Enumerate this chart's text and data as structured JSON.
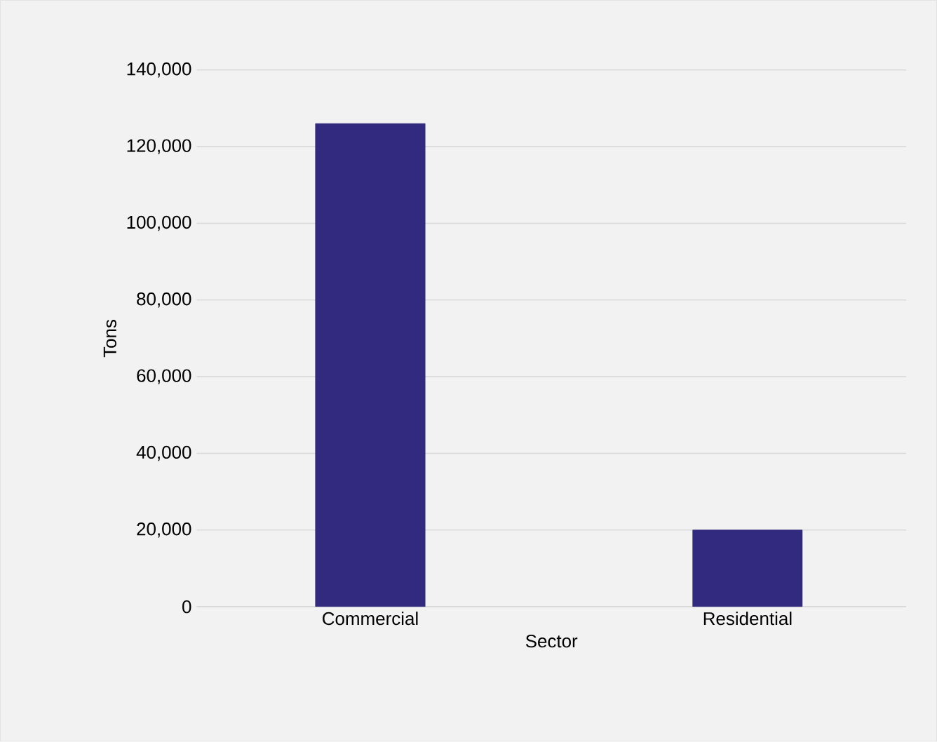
{
  "chart_data": {
    "type": "bar",
    "xlabel": "Sector",
    "ylabel": "Tons",
    "categories": [
      "Commercial",
      "Residential"
    ],
    "values": [
      126000,
      20000
    ],
    "color": "#312a7e",
    "ylim": [
      0,
      140000
    ],
    "yticks": [
      {
        "value": 0,
        "label": "0"
      },
      {
        "value": 20000,
        "label": "20,000"
      },
      {
        "value": 40000,
        "label": "40,000"
      },
      {
        "value": 60000,
        "label": "60,000"
      },
      {
        "value": 80000,
        "label": "80,000"
      },
      {
        "value": 100000,
        "label": "100,000"
      },
      {
        "value": 120000,
        "label": "120,000"
      },
      {
        "value": 140000,
        "label": "140,000"
      }
    ],
    "grid": "y"
  }
}
